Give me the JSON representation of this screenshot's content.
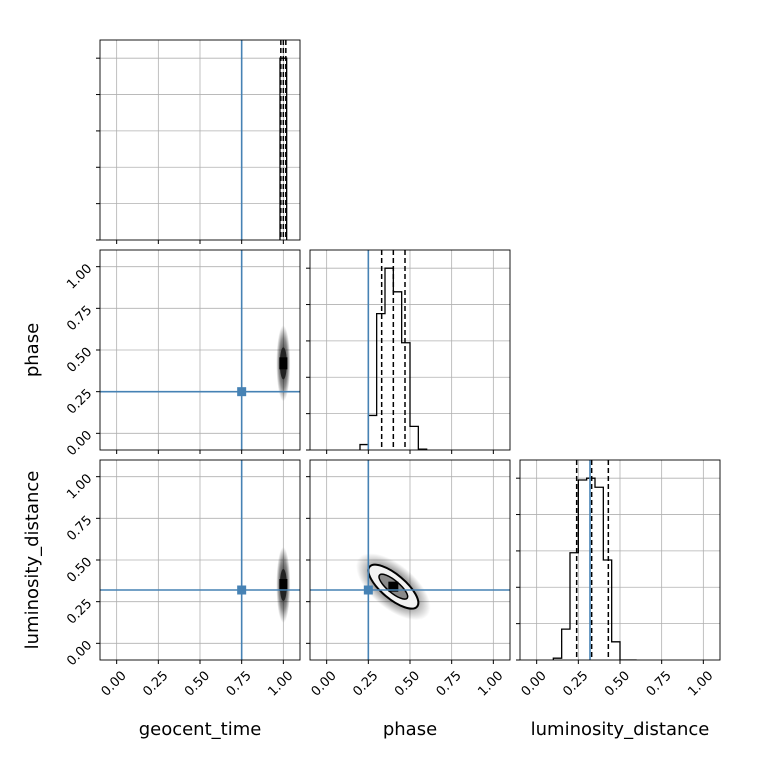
{
  "chart_data": {
    "type": "corner",
    "parameters": [
      "geocent_time",
      "phase",
      "luminosity_distance"
    ],
    "axis_range": [
      -0.1,
      1.1
    ],
    "tick_labels": [
      "0.00",
      "0.25",
      "0.50",
      "0.75",
      "1.00"
    ],
    "tick_values": [
      0.0,
      0.25,
      0.5,
      0.75,
      1.0
    ],
    "grid": true,
    "colors": {
      "truth": "#4682b4",
      "hist": "#000000",
      "grid": "#b0b0b0"
    },
    "truths": {
      "geocent_time": 0.75,
      "phase": 0.25,
      "luminosity_distance": 0.32
    },
    "marginals": [
      {
        "parameter": "geocent_time",
        "bin_edges": [
          0.98,
          1.02
        ],
        "counts": [
          1.0
        ],
        "quantiles": [
          0.985,
          1.0,
          1.015
        ]
      },
      {
        "parameter": "phase",
        "bin_edges": [
          0.2,
          0.25,
          0.3,
          0.35,
          0.4,
          0.45,
          0.5,
          0.55,
          0.6
        ],
        "counts": [
          0.03,
          0.19,
          0.75,
          1.0,
          0.87,
          0.59,
          0.13,
          0.005
        ],
        "quantiles": [
          0.33,
          0.4,
          0.47
        ]
      },
      {
        "parameter": "luminosity_distance",
        "bin_edges": [
          0.1,
          0.15,
          0.2,
          0.25,
          0.3,
          0.35,
          0.4,
          0.45,
          0.5,
          0.55,
          0.6
        ],
        "counts": [
          0.01,
          0.17,
          0.59,
          0.99,
          1.0,
          0.95,
          0.55,
          0.1,
          0.0,
          0.0
        ],
        "quantiles": [
          0.24,
          0.33,
          0.43
        ]
      }
    ],
    "joint_2d": [
      {
        "x": "geocent_time",
        "y": "phase",
        "center": [
          1.0,
          0.42
        ]
      },
      {
        "x": "geocent_time",
        "y": "luminosity_distance",
        "center": [
          1.0,
          0.35
        ]
      },
      {
        "x": "phase",
        "y": "luminosity_distance",
        "center": [
          0.4,
          0.34
        ],
        "correlation": "negative"
      }
    ]
  }
}
